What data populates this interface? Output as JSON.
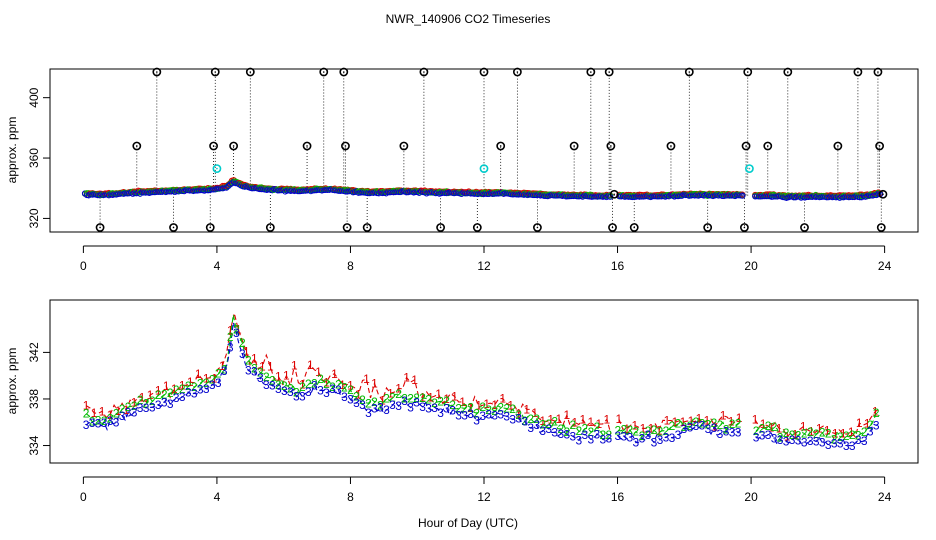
{
  "chart_data": [
    {
      "type": "scatter",
      "title": "NWR_140906  CO2 Timeseries",
      "ylabel": "approx. ppm",
      "xlim": [
        -1,
        25
      ],
      "ylim": [
        311,
        419
      ],
      "xticks": [
        0,
        4,
        8,
        12,
        16,
        20,
        24
      ],
      "yticks": [
        320,
        360,
        400
      ],
      "grid": false,
      "series": [
        {
          "name": "outliers",
          "color": "#000000",
          "marker": "circle-dot",
          "x": [
            0.5,
            1.6,
            2.2,
            2.7,
            3.8,
            3.9,
            3.95,
            4.5,
            5.0,
            5.6,
            6.7,
            7.2,
            7.8,
            7.85,
            7.9,
            8.5,
            9.6,
            10.2,
            10.7,
            11.8,
            12.0,
            12.5,
            13.0,
            13.6,
            14.7,
            15.2,
            15.75,
            15.8,
            15.85,
            15.9,
            16.5,
            17.6,
            18.15,
            18.7,
            19.8,
            19.85,
            19.9,
            20.5,
            21.1,
            21.6,
            22.6,
            23.2,
            23.8,
            23.85,
            23.9,
            23.95
          ],
          "y": [
            314,
            368,
            417,
            314,
            314,
            368,
            417,
            368,
            417,
            314,
            368,
            417,
            417,
            368,
            314,
            314,
            368,
            417,
            314,
            314,
            417,
            368,
            417,
            314,
            368,
            417,
            417,
            368,
            314,
            336,
            314,
            368,
            417,
            314,
            314,
            368,
            417,
            368,
            417,
            314,
            368,
            417,
            417,
            368,
            314,
            336
          ]
        },
        {
          "name": "flagged",
          "color": "#00cccc",
          "marker": "circle-dot",
          "x": [
            4.0,
            12.0,
            19.95
          ],
          "y": [
            353,
            353,
            353
          ]
        }
      ]
    },
    {
      "type": "scatter",
      "ylabel": "approx. ppm",
      "xlabel": "Hour of Day (UTC)",
      "xlim": [
        -1,
        25
      ],
      "ylim": [
        332.5,
        346.5
      ],
      "xticks": [
        0,
        4,
        8,
        12,
        16,
        20,
        24
      ],
      "yticks": [
        334,
        338,
        342
      ],
      "grid": false,
      "profile": {
        "x": [
          0.1,
          0.5,
          1.0,
          1.5,
          2.0,
          2.5,
          3.0,
          3.5,
          4.0,
          4.3,
          4.5,
          4.6,
          4.8,
          5.0,
          5.5,
          6.0,
          6.5,
          7.0,
          7.5,
          8.0,
          8.5,
          9.0,
          9.5,
          10.0,
          10.5,
          11.0,
          11.5,
          12.0,
          12.5,
          13.0,
          13.5,
          14.0,
          14.5,
          15.0,
          15.5,
          15.8,
          16.0,
          16.5,
          17.0,
          17.5,
          18.0,
          18.5,
          19.0,
          19.5,
          19.75,
          20.0,
          20.5,
          21.0,
          21.5,
          22.0,
          22.5,
          23.0,
          23.3,
          23.6,
          23.8
        ],
        "y": [
          336.3,
          335.8,
          336.4,
          337.2,
          337.6,
          338.1,
          338.6,
          339.0,
          339.6,
          341.0,
          344.8,
          343.6,
          341.8,
          340.6,
          339.6,
          339.0,
          338.6,
          339.2,
          339.0,
          338.3,
          337.5,
          337.4,
          338.0,
          337.8,
          337.4,
          337.2,
          337.0,
          336.7,
          336.9,
          336.4,
          336.0,
          335.5,
          335.2,
          335.1,
          334.9,
          334.9,
          335.0,
          334.8,
          334.9,
          335.1,
          335.6,
          335.8,
          335.5,
          335.4,
          335.6,
          334.8,
          335.3,
          334.6,
          334.6,
          334.8,
          334.6,
          334.5,
          334.8,
          335.6,
          336.4
        ]
      },
      "gaps": [
        [
          15.8,
          16.0
        ],
        [
          19.75,
          20.1
        ]
      ],
      "series": [
        {
          "name": "1",
          "label": "1",
          "color": "#dd0000"
        },
        {
          "name": "2",
          "label": "2",
          "color": "#00bb00"
        },
        {
          "name": "3",
          "label": "3",
          "color": "#0000cc"
        }
      ]
    }
  ],
  "labels": {
    "title": "NWR_140906  CO2 Timeseries",
    "top_ylabel": "approx. ppm",
    "bottom_ylabel": "approx. ppm",
    "xlabel": "Hour of Day (UTC)"
  }
}
